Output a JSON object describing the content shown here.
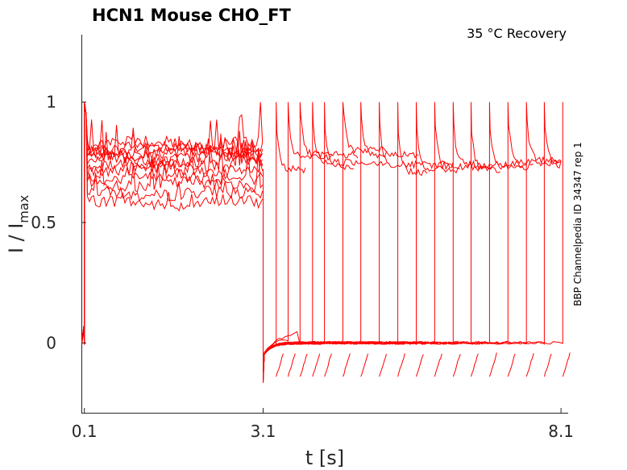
{
  "chart_data": {
    "type": "line",
    "title": "HCN1  Mouse  CHO_FT",
    "condition": "35 °C  Recovery",
    "side_label": "BBP Channelpedia ID 34347 rep 1",
    "xlabel": "t [s]",
    "ylabel_main": "I / I",
    "ylabel_sub": "max",
    "xticks": [
      "0.1",
      "3.1",
      "8.1"
    ],
    "yticks": [
      "0",
      "0.5",
      "1"
    ],
    "xlim": [
      0.05,
      8.22
    ],
    "ylim": [
      -0.29,
      1.28
    ],
    "color": "#ff0000",
    "protocol": {
      "prepulse_start": 0.1,
      "prepulse_end": 3.1,
      "recovery_steps_end": [
        3.32,
        3.52,
        3.72,
        3.93,
        4.13,
        4.44,
        4.74,
        5.05,
        5.36,
        5.67,
        5.98,
        6.29,
        6.59,
        6.9,
        7.21,
        7.52,
        7.82,
        8.13
      ],
      "prepulse_plateau": [
        0.58,
        0.62,
        0.66,
        0.69,
        0.72,
        0.74,
        0.76,
        0.77,
        0.79,
        0.8,
        0.81,
        0.83
      ],
      "recovery_levels": [
        0.72,
        0.77,
        0.78,
        0.75,
        0.73,
        0.8,
        0.78,
        0.74,
        0.71,
        0.72,
        0.73,
        0.74,
        0.72,
        0.73,
        0.75,
        0.76,
        0.74,
        0.72
      ],
      "baseline_level": 0.0,
      "undershoot_min": -0.15
    }
  }
}
